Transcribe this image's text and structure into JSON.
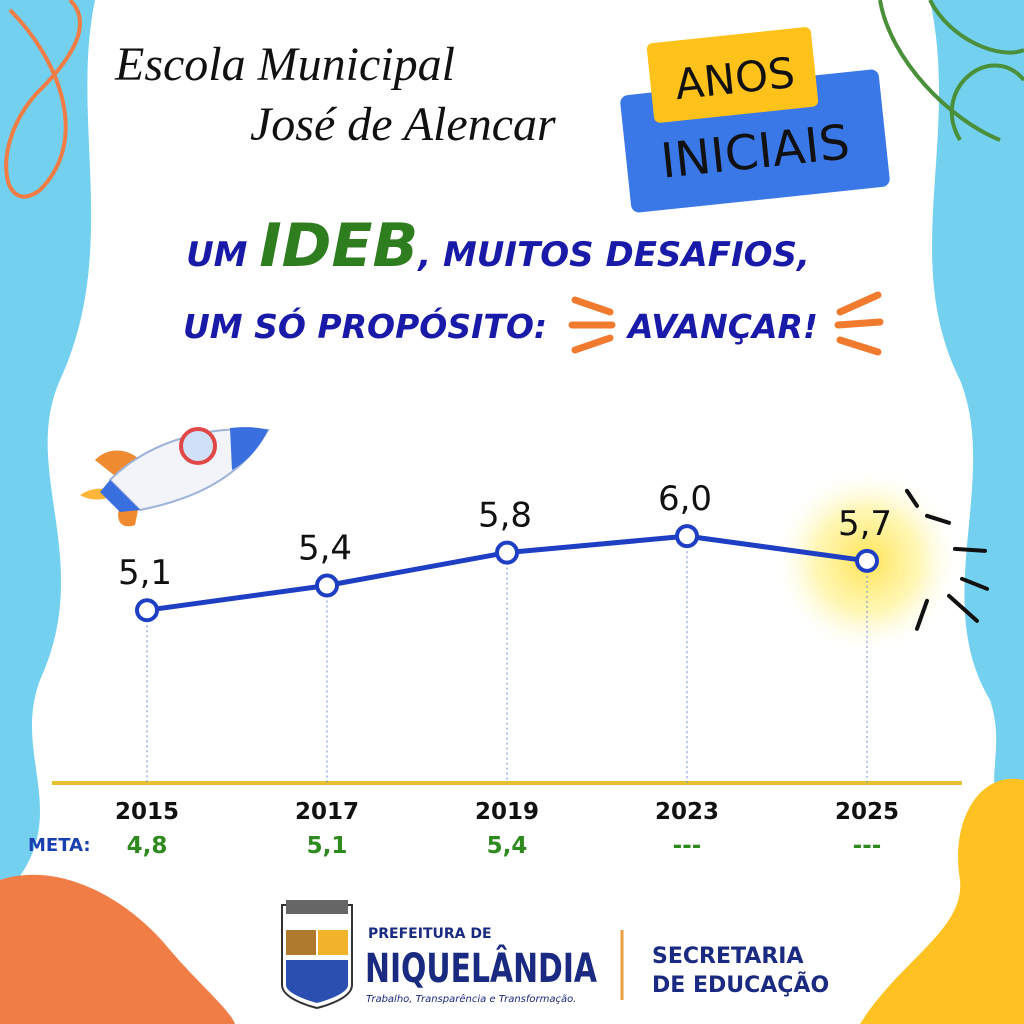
{
  "header": {
    "school_line1": "Escola Municipal",
    "school_line2": "José de Alencar",
    "badge_top": "ANOS",
    "badge_bottom": "INICIAIS",
    "headline_1a": "UM ",
    "headline_1b": "IDEB",
    "headline_1c": ", MUITOS DESAFIOS,",
    "headline_2a": "UM SÓ PROPÓSITO:",
    "headline_2b": "AVANÇAR!"
  },
  "chart_data": {
    "type": "line",
    "categories": [
      "2015",
      "2017",
      "2019",
      "2023",
      "2025"
    ],
    "values": [
      5.1,
      5.4,
      5.8,
      6.0,
      5.7
    ],
    "value_labels": [
      "5,1",
      "5,4",
      "5,8",
      "6,0",
      "5,7"
    ],
    "color": "#1e3fc4",
    "ylim": [
      3,
      6.5
    ],
    "meta_label": "META:",
    "meta": [
      "4,8",
      "5,1",
      "5,4",
      "---",
      "---"
    ]
  },
  "footer": {
    "city_prefix": "PREFEITURA DE",
    "city": "NIQUELÂNDIA",
    "slogan": "Trabalho, Transparência e Transformação.",
    "dept_line1": "SECRETARIA",
    "dept_line2": "DE EDUCAÇÃO"
  }
}
